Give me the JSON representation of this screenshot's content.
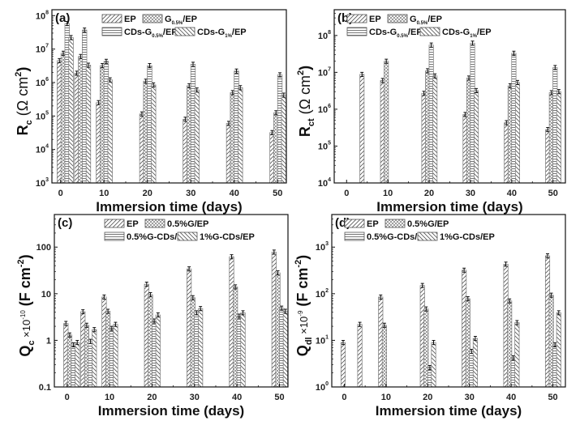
{
  "chart_data": [
    {
      "type": "bar",
      "panel_label": "(a)",
      "ylabel": "R_c (Ω cm²)",
      "ylabel_parts": {
        "main": "R",
        "sub": "c",
        "unit": "(Ω cm",
        "sup": "2",
        "close": ")"
      },
      "xlabel": "Immersion time (days)",
      "yscale": "log",
      "ylim": [
        1000,
        150000000
      ],
      "yticks": [
        1000,
        10000,
        100000,
        1000000,
        10000000,
        100000000
      ],
      "ytick_labels": [
        {
          "base": "10",
          "exp": "3"
        },
        {
          "base": "10",
          "exp": "4"
        },
        {
          "base": "10",
          "exp": "5"
        },
        {
          "base": "10",
          "exp": "6"
        },
        {
          "base": "10",
          "exp": "7"
        },
        {
          "base": "10",
          "exp": "8"
        }
      ],
      "xlim": [
        -2,
        52
      ],
      "xticks": [
        0,
        10,
        20,
        30,
        40,
        50
      ],
      "xtick_labels": [
        "0",
        "10",
        "20",
        "30",
        "40",
        "50"
      ],
      "categories": [
        1,
        5,
        10,
        20,
        30,
        40,
        50
      ],
      "legend": [
        {
          "label": "EP",
          "sub": "",
          "suffix": ""
        },
        {
          "label": "G",
          "sub": "0.5%",
          "suffix": "/EP"
        },
        {
          "label": "CDs-G",
          "sub": "0.5%",
          "suffix": "/EP"
        },
        {
          "label": "CDs-G",
          "sub": "1%",
          "suffix": "/EP"
        }
      ],
      "series": [
        {
          "name": "EP",
          "pattern": "diag-right",
          "values": [
            4500000,
            1900000,
            250000,
            115000,
            80000,
            60000,
            32000
          ]
        },
        {
          "name": "G0.5%/EP",
          "pattern": "crosshatch",
          "values": [
            7500000,
            6000000,
            3200000,
            1100000,
            800000,
            500000,
            125000
          ]
        },
        {
          "name": "CDs-G0.5%/EP",
          "pattern": "horizontal",
          "values": [
            58000000,
            37000000,
            4300000,
            3200000,
            3500000,
            2200000,
            1700000
          ]
        },
        {
          "name": "CDs-G1%/EP",
          "pattern": "diag-left",
          "values": [
            22000000,
            3300000,
            1200000,
            850000,
            600000,
            700000,
            420000
          ]
        }
      ]
    },
    {
      "type": "bar",
      "panel_label": "(b)",
      "ylabel": "R_ct (Ω cm²)",
      "ylabel_parts": {
        "main": "R",
        "sub": "ct",
        "unit": "(Ω cm",
        "sup": "2",
        "close": ")"
      },
      "xlabel": "Immersion time (days)",
      "yscale": "log",
      "ylim": [
        10000,
        500000000
      ],
      "yticks": [
        10000,
        100000,
        1000000,
        10000000,
        100000000
      ],
      "ytick_labels": [
        {
          "base": "10",
          "exp": "4"
        },
        {
          "base": "10",
          "exp": "5"
        },
        {
          "base": "10",
          "exp": "6"
        },
        {
          "base": "10",
          "exp": "7"
        },
        {
          "base": "10",
          "exp": "8"
        }
      ],
      "xlim": [
        -3,
        53
      ],
      "xticks": [
        0,
        10,
        20,
        30,
        40,
        50
      ],
      "xtick_labels": [
        "0",
        "10",
        "20",
        "30",
        "40",
        "50"
      ],
      "categories": [
        1,
        5,
        10,
        20,
        30,
        40,
        50
      ],
      "legend": [
        {
          "label": "EP",
          "sub": "",
          "suffix": ""
        },
        {
          "label": "G",
          "sub": "0.5%",
          "suffix": "/EP"
        },
        {
          "label": "CDs-G",
          "sub": "0.5%",
          "suffix": "/EP"
        },
        {
          "label": "CDs-G",
          "sub": "1%",
          "suffix": "/EP"
        }
      ],
      "series": [
        {
          "name": "EP",
          "pattern": "diag-right",
          "values": [
            null,
            8800000,
            6000000,
            2700000,
            720000,
            430000,
            280000
          ]
        },
        {
          "name": "G0.5%/EP",
          "pattern": "crosshatch",
          "values": [
            null,
            null,
            20000000,
            11000000,
            7000000,
            4300000,
            2800000
          ]
        },
        {
          "name": "CDs-G0.5%/EP",
          "pattern": "horizontal",
          "values": [
            null,
            null,
            null,
            55000000,
            62000000,
            33000000,
            13500000
          ]
        },
        {
          "name": "CDs-G1%/EP",
          "pattern": "diag-left",
          "values": [
            null,
            null,
            null,
            8000000,
            3200000,
            5300000,
            3000000
          ]
        }
      ]
    },
    {
      "type": "bar",
      "panel_label": "(c)",
      "ylabel": "Q_c ×10^-10 (F cm^-2)",
      "ylabel_parts": {
        "main": "Q",
        "sub": "c",
        "mult": " ×10",
        "multsup": "-10",
        "unit": "(F cm",
        "sup": "-2",
        "close": ")"
      },
      "xlabel": "Immersion time (days)",
      "yscale": "log",
      "ylim": [
        0.1,
        500
      ],
      "yticks": [
        0.1,
        1,
        10,
        100
      ],
      "ytick_labels": [
        {
          "base": "0.1",
          "exp": ""
        },
        {
          "base": "1",
          "exp": ""
        },
        {
          "base": "10",
          "exp": ""
        },
        {
          "base": "100",
          "exp": ""
        }
      ],
      "xlim": [
        -3,
        52
      ],
      "xticks": [
        0,
        10,
        20,
        30,
        40,
        50
      ],
      "xtick_labels": [
        "0",
        "10",
        "20",
        "30",
        "40",
        "50"
      ],
      "categories": [
        1,
        5,
        10,
        20,
        30,
        40,
        50
      ],
      "legend": [
        {
          "label": "EP",
          "sub": "",
          "suffix": ""
        },
        {
          "label": "0.5%G/EP",
          "sub": "",
          "suffix": ""
        },
        {
          "label": "0.5%G-CDs/EP",
          "sub": "",
          "suffix": ""
        },
        {
          "label": "1%G-CDs/EP",
          "sub": "",
          "suffix": ""
        }
      ],
      "series": [
        {
          "name": "EP",
          "pattern": "diag-right",
          "values": [
            2.3,
            4.1,
            8.5,
            16,
            34,
            62,
            78
          ]
        },
        {
          "name": "0.5%G/EP",
          "pattern": "crosshatch",
          "values": [
            1.3,
            2.1,
            4.2,
            9.5,
            8.2,
            14,
            28
          ]
        },
        {
          "name": "0.5%G-CDs/EP",
          "pattern": "horizontal",
          "values": [
            0.8,
            0.95,
            1.8,
            2.6,
            3.9,
            3.3,
            4.9
          ]
        },
        {
          "name": "1%G-CDs/EP",
          "pattern": "diag-left",
          "values": [
            0.9,
            1.7,
            2.2,
            3.5,
            4.8,
            3.9,
            4.2
          ]
        }
      ]
    },
    {
      "type": "bar",
      "panel_label": "(d)",
      "ylabel": "Q_dl ×10^-9 (F cm^-2)",
      "ylabel_parts": {
        "main": "Q",
        "sub": "dl",
        "mult": " ×10",
        "multsup": "-9",
        "unit": "(F cm",
        "sup": "-2",
        "close": ")"
      },
      "xlabel": "Immersion time (days)",
      "yscale": "log",
      "ylim": [
        1,
        5000
      ],
      "yticks": [
        1,
        10,
        100,
        1000
      ],
      "ytick_labels": [
        {
          "base": "10",
          "exp": "0"
        },
        {
          "base": "10",
          "exp": "1"
        },
        {
          "base": "10",
          "exp": "2"
        },
        {
          "base": "10",
          "exp": "3"
        }
      ],
      "xlim": [
        -3,
        53
      ],
      "xticks": [
        0,
        10,
        20,
        30,
        40,
        50
      ],
      "xtick_labels": [
        "0",
        "10",
        "20",
        "30",
        "40",
        "50"
      ],
      "categories": [
        1,
        5,
        10,
        20,
        30,
        40,
        50
      ],
      "legend": [
        {
          "label": "EP",
          "sub": "",
          "suffix": ""
        },
        {
          "label": "0.5%G/EP",
          "sub": "",
          "suffix": ""
        },
        {
          "label": "0.5%G-CDs/EP",
          "sub": "",
          "suffix": ""
        },
        {
          "label": "1%G-CDs/EP",
          "sub": "",
          "suffix": ""
        }
      ],
      "series": [
        {
          "name": "EP",
          "pattern": "diag-right",
          "values": [
            9,
            22,
            85,
            150,
            320,
            430,
            650
          ]
        },
        {
          "name": "0.5%G/EP",
          "pattern": "crosshatch",
          "values": [
            null,
            null,
            21,
            47,
            78,
            70,
            93
          ]
        },
        {
          "name": "0.5%G-CDs/EP",
          "pattern": "horizontal",
          "values": [
            null,
            null,
            null,
            2.6,
            5.8,
            4.2,
            8
          ]
        },
        {
          "name": "1%G-CDs/EP",
          "pattern": "diag-left",
          "values": [
            null,
            null,
            null,
            9,
            11,
            24,
            39
          ]
        }
      ]
    }
  ]
}
